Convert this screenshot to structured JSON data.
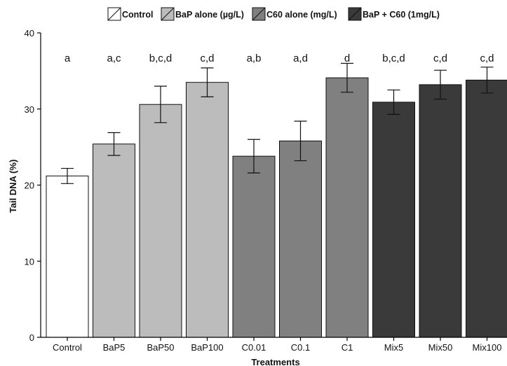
{
  "chart_data": {
    "type": "bar",
    "title": "",
    "xlabel": "Treatments",
    "ylabel": "Tail DNA (%)",
    "ylim": [
      0,
      40
    ],
    "yticks": [
      0,
      10,
      20,
      30,
      40
    ],
    "grid": false,
    "legend_position": "top",
    "legend": [
      {
        "label": "Control",
        "color": "#ffffff"
      },
      {
        "label": "BaP alone (µg/L)",
        "color": "#bcbcbc"
      },
      {
        "label": "C60 alone (mg/L)",
        "color": "#808080"
      },
      {
        "label": "BaP + C60 (1mg/L)",
        "color": "#3a3a3a"
      }
    ],
    "categories": [
      "Control",
      "BaP5",
      "BaP50",
      "BaP100",
      "C0.01",
      "C0.1",
      "C1",
      "Mix5",
      "Mix50",
      "Mix100"
    ],
    "values": [
      21.2,
      25.4,
      30.6,
      33.5,
      23.8,
      25.8,
      34.1,
      30.9,
      33.2,
      33.8
    ],
    "error": [
      1.0,
      1.5,
      2.4,
      1.9,
      2.2,
      2.6,
      1.9,
      1.6,
      1.9,
      1.7
    ],
    "group": [
      0,
      1,
      1,
      1,
      2,
      2,
      2,
      3,
      3,
      3
    ],
    "significance_labels": [
      "a",
      "a,c",
      "b,c,d",
      "c,d",
      "a,b",
      "a,d",
      "d",
      "b,c,d",
      "c,d",
      "c,d"
    ]
  }
}
